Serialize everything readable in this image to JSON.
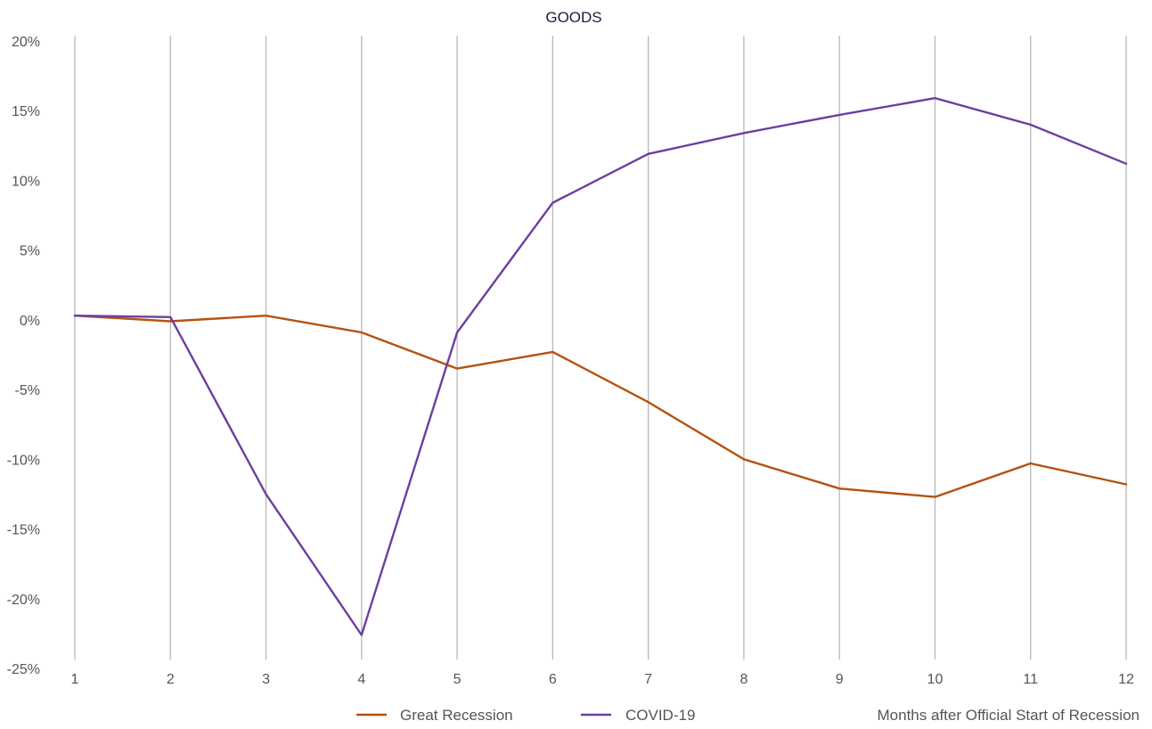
{
  "chart_data": {
    "type": "line",
    "title": "GOODS",
    "xlabel": "Months after Official Start of Recession",
    "ylabel": "",
    "x": [
      1,
      2,
      3,
      4,
      5,
      6,
      7,
      8,
      9,
      10,
      11,
      12
    ],
    "ylim": [
      -25,
      20
    ],
    "yticks": [
      20,
      15,
      10,
      5,
      0,
      -5,
      -10,
      -15,
      -20,
      -25
    ],
    "ytick_labels": [
      "20%",
      "15%",
      "10%",
      "5%",
      "0%",
      "-5%",
      "-10%",
      "-15%",
      "-20%",
      "-25%"
    ],
    "xtick_labels": [
      "1",
      "2",
      "3",
      "4",
      "5",
      "6",
      "7",
      "8",
      "9",
      "10",
      "11",
      "12"
    ],
    "grid": "vertical",
    "legend_position": "bottom",
    "series": [
      {
        "name": "Great Recession",
        "color": "#b5520f",
        "values": [
          0.3,
          -0.1,
          0.3,
          -0.9,
          -3.5,
          -2.3,
          -5.9,
          -10.0,
          -12.1,
          -12.7,
          -10.3,
          -11.8
        ]
      },
      {
        "name": "COVID-19",
        "color": "#6c3f9e",
        "values": [
          0.3,
          0.2,
          -12.5,
          -22.6,
          -0.9,
          8.4,
          11.9,
          13.4,
          14.7,
          15.9,
          14.0,
          11.2
        ]
      }
    ]
  }
}
